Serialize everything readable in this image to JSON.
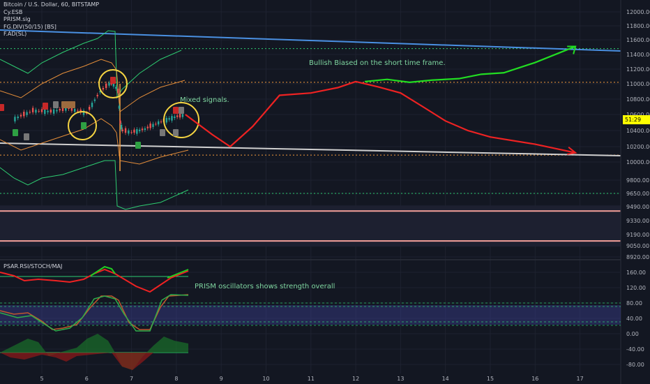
{
  "header": {
    "title": "Bitcoin / U.S. Dollar, 60, BITSTAMP",
    "indicators": [
      "Cy.ESB",
      "PRISM.sig",
      "FG.DIV(50/15) [BS]",
      "F.AD(SL)"
    ]
  },
  "sub_panel": {
    "title": "PSAR.RSI/STOCH/MAJ"
  },
  "annotations": {
    "bullish": "Bullish Biased on the short time frame.",
    "mixed": "Mixed signals.",
    "prism": "PRISM oscillators shows strength overall"
  },
  "price_label": "51:29",
  "colors": {
    "background": "#131722",
    "blue_trend": "#4a90e2",
    "green_arrow": "#22dd22",
    "red_arrow": "#ee2222",
    "white_trend": "#d0d0d0",
    "orange_dotted": "#f59c3c",
    "green_dotted": "#2ecc71",
    "salmon_band": "#f5a09a",
    "yellow_circle": "#f5d442",
    "rsi_band": "#3a3f8f"
  },
  "chart_data": [
    {
      "type": "line",
      "title": "Bitcoin / U.S. Dollar, 60, BITSTAMP",
      "y_ticks": [
        12000,
        11800,
        11600,
        11400,
        11200,
        11000,
        10800,
        10600,
        10400,
        10200,
        10000,
        9800,
        9650,
        9490,
        9330,
        9190,
        9050,
        8920
      ],
      "x_ticks": [
        "5",
        "6",
        "7",
        "8",
        "9",
        "10",
        "11",
        "12",
        "13",
        "14",
        "15",
        "16",
        "17"
      ],
      "ylim": [
        8920,
        12100
      ],
      "current_price_label": "51:29",
      "series": [
        {
          "name": "",
          "x": [
            4.4,
            4.8,
            5.2,
            5.6,
            6.0,
            6.3,
            6.5,
            6.6,
            6.7,
            6.75,
            6.8,
            7.0,
            7.3,
            7.6,
            7.9,
            8.2
          ],
          "values": [
            10550,
            10650,
            10640,
            10680,
            10620,
            10900,
            11000,
            11000,
            10900,
            10500,
            10400,
            10380,
            10420,
            10500,
            10560,
            10600
          ]
        }
      ],
      "levels": [
        {
          "y": 11480,
          "style": "green-dotted"
        },
        {
          "y": 11020,
          "style": "orange-dotted"
        },
        {
          "y": 10090,
          "style": "orange-dotted"
        },
        {
          "y": 9650,
          "style": "green-dotted"
        },
        {
          "y": 9440,
          "style": "salmon"
        },
        {
          "y": 9110,
          "style": "salmon"
        }
      ],
      "projections": [
        {
          "name": "",
          "x": [
            8.2,
            8.8,
            9.2,
            9.7,
            10.3,
            11.0,
            11.6,
            12.0,
            12.5,
            13.0,
            13.5,
            14.0,
            14.5,
            15.0,
            16.0,
            16.9
          ],
          "values": [
            10600,
            10350,
            10200,
            10450,
            10850,
            10880,
            10950,
            11030,
            10960,
            10880,
            10700,
            10520,
            10400,
            10320,
            10230,
            10120
          ]
        },
        {
          "name": "",
          "x": [
            12.2,
            12.7,
            13.2,
            13.7,
            14.3,
            14.8,
            15.3,
            16.0,
            16.9
          ],
          "values": [
            11030,
            11060,
            11020,
            11050,
            11070,
            11130,
            11150,
            11290,
            11510
          ]
        }
      ]
    },
    {
      "type": "line",
      "title": "PSAR.RSI/STOCH/MAJ",
      "y_ticks": [
        160,
        120,
        80,
        40,
        0,
        -40,
        -80
      ],
      "ylim": [
        -100,
        180
      ]
    }
  ]
}
